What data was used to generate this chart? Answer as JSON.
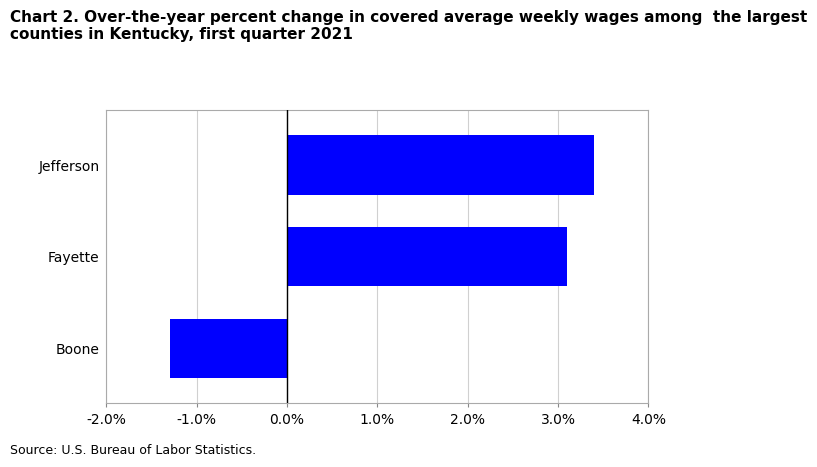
{
  "title_line1": "Chart 2. Over-the-year percent change in covered average weekly wages among  the largest",
  "title_line2": "counties in Kentucky, first quarter 2021",
  "categories": [
    "Boone",
    "Fayette",
    "Jefferson"
  ],
  "values": [
    -1.3,
    3.1,
    3.4
  ],
  "bar_color": "#0000FF",
  "xlim": [
    -0.02,
    0.04
  ],
  "xticks": [
    -0.02,
    -0.01,
    0.0,
    0.01,
    0.02,
    0.03,
    0.04
  ],
  "xticklabels": [
    "-2.0%",
    "-1.0%",
    "0.0%",
    "1.0%",
    "2.0%",
    "3.0%",
    "4.0%"
  ],
  "source": "Source: U.S. Bureau of Labor Statistics.",
  "background_color": "#ffffff",
  "grid_color": "#d0d0d0",
  "title_fontsize": 11,
  "tick_fontsize": 10,
  "source_fontsize": 9,
  "bar_height": 0.65
}
